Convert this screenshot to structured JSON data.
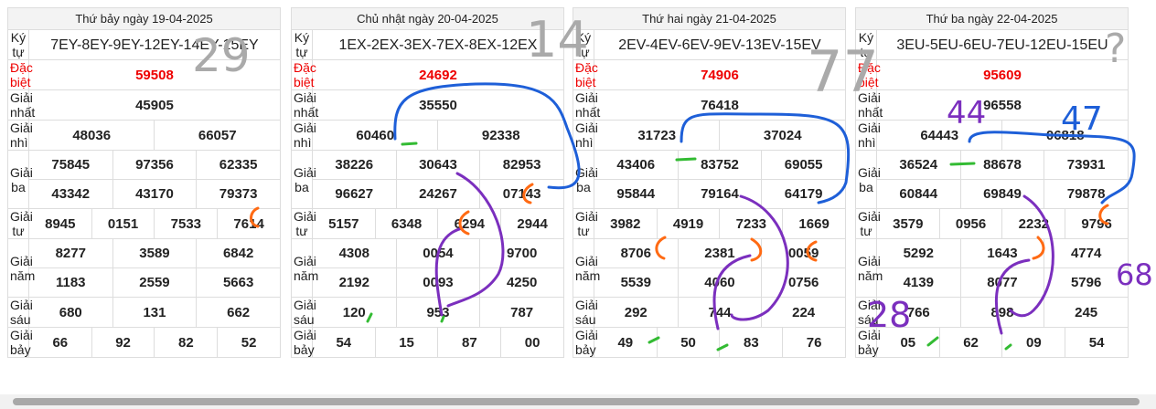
{
  "days": [
    {
      "title": "Thứ bảy ngày 19-04-2025",
      "rows": [
        {
          "label": "Ký tự",
          "numbers": [
            "7EY-8EY-9EY-12EY-14EY-15EY"
          ]
        },
        {
          "label": "Đặc biệt",
          "numbers": [
            "59508"
          ]
        },
        {
          "label": "Giải nhất",
          "numbers": [
            "45905"
          ]
        },
        {
          "label": "Giải nhì",
          "numbers": [
            "48036",
            "66057"
          ]
        },
        {
          "label": "Giải ba",
          "numbers": [
            "75845",
            "97356",
            "62335",
            "43342",
            "43170",
            "79373"
          ]
        },
        {
          "label": "Giải tư",
          "numbers": [
            "8945",
            "0151",
            "7533",
            "7614"
          ]
        },
        {
          "label": "Giải năm",
          "numbers": [
            "8277",
            "3589",
            "6842",
            "1183",
            "2559",
            "5663"
          ]
        },
        {
          "label": "Giải sáu",
          "numbers": [
            "680",
            "131",
            "662"
          ]
        },
        {
          "label": "Giải bảy",
          "numbers": [
            "66",
            "92",
            "82",
            "52"
          ]
        }
      ]
    },
    {
      "title": "Chủ nhật ngày 20-04-2025",
      "rows": [
        {
          "label": "Ký tự",
          "numbers": [
            "1EX-2EX-3EX-7EX-8EX-12EX"
          ]
        },
        {
          "label": "Đặc biệt",
          "numbers": [
            "24692"
          ]
        },
        {
          "label": "Giải nhất",
          "numbers": [
            "35550"
          ]
        },
        {
          "label": "Giải nhì",
          "numbers": [
            "60460",
            "92338"
          ]
        },
        {
          "label": "Giải ba",
          "numbers": [
            "38226",
            "30643",
            "82953",
            "96627",
            "24267",
            "07143"
          ]
        },
        {
          "label": "Giải tư",
          "numbers": [
            "5157",
            "6348",
            "6294",
            "2944"
          ]
        },
        {
          "label": "Giải năm",
          "numbers": [
            "4308",
            "0054",
            "9700",
            "2192",
            "0093",
            "4250"
          ]
        },
        {
          "label": "Giải sáu",
          "numbers": [
            "120",
            "953",
            "787"
          ]
        },
        {
          "label": "Giải bảy",
          "numbers": [
            "54",
            "15",
            "87",
            "00"
          ]
        }
      ]
    },
    {
      "title": "Thứ hai ngày 21-04-2025",
      "rows": [
        {
          "label": "Ký tự",
          "numbers": [
            "2EV-4EV-6EV-9EV-13EV-15EV"
          ]
        },
        {
          "label": "Đặc biệt",
          "numbers": [
            "74906"
          ]
        },
        {
          "label": "Giải nhất",
          "numbers": [
            "76418"
          ]
        },
        {
          "label": "Giải nhì",
          "numbers": [
            "31723",
            "37024"
          ]
        },
        {
          "label": "Giải ba",
          "numbers": [
            "43406",
            "83752",
            "69055",
            "95844",
            "79164",
            "64179"
          ]
        },
        {
          "label": "Giải tư",
          "numbers": [
            "3982",
            "4919",
            "7233",
            "1669"
          ]
        },
        {
          "label": "Giải năm",
          "numbers": [
            "8706",
            "2381",
            "0059",
            "5539",
            "4060",
            "0756"
          ]
        },
        {
          "label": "Giải sáu",
          "numbers": [
            "292",
            "744",
            "224"
          ]
        },
        {
          "label": "Giải bảy",
          "numbers": [
            "49",
            "50",
            "83",
            "76"
          ]
        }
      ]
    },
    {
      "title": "Thứ ba ngày 22-04-2025",
      "rows": [
        {
          "label": "Ký tự",
          "numbers": [
            "3EU-5EU-6EU-7EU-12EU-15EU"
          ]
        },
        {
          "label": "Đặc biệt",
          "numbers": [
            "95609"
          ]
        },
        {
          "label": "Giải nhất",
          "numbers": [
            "96558"
          ]
        },
        {
          "label": "Giải nhì",
          "numbers": [
            "64443",
            "06818"
          ]
        },
        {
          "label": "Giải ba",
          "numbers": [
            "36524",
            "88678",
            "73931",
            "60844",
            "69849",
            "79878"
          ]
        },
        {
          "label": "Giải tư",
          "numbers": [
            "3579",
            "0956",
            "2232",
            "9796"
          ]
        },
        {
          "label": "Giải năm",
          "numbers": [
            "5292",
            "1643",
            "4774",
            "4139",
            "8077",
            "5796"
          ]
        },
        {
          "label": "Giải sáu",
          "numbers": [
            "766",
            "898",
            "245"
          ]
        },
        {
          "label": "Giải bảy",
          "numbers": [
            "05",
            "62",
            "09",
            "54"
          ]
        }
      ]
    }
  ],
  "annotations": [
    "29",
    "14",
    "77",
    "?",
    "44",
    "47",
    "28",
    "68"
  ]
}
